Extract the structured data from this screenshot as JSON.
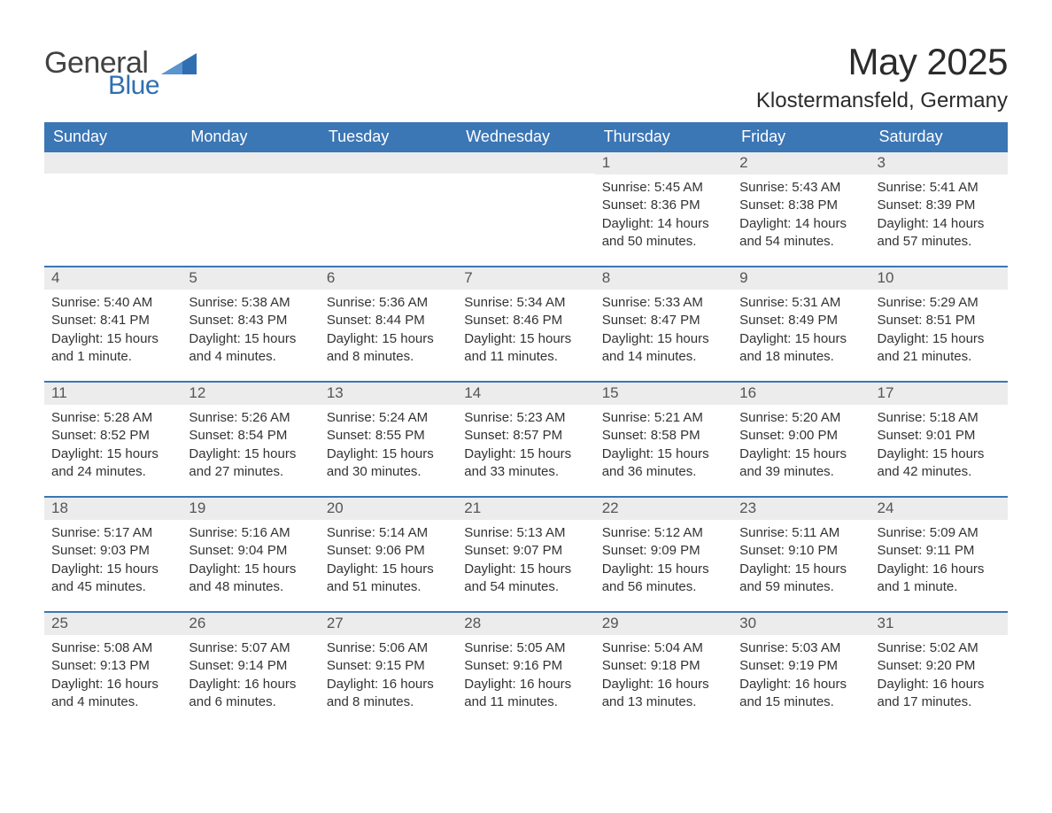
{
  "logo": {
    "general": "General",
    "blue": "Blue",
    "icon_color": "#2f6fb1"
  },
  "title": "May 2025",
  "location": "Klostermansfeld, Germany",
  "colors": {
    "header_bg": "#3b76b5",
    "header_text": "#ffffff",
    "daynum_bg": "#ececec",
    "daynum_text": "#555555",
    "body_text": "#333333",
    "rule": "#3b76b5",
    "page_bg": "#ffffff"
  },
  "typography": {
    "title_fontsize": 42,
    "location_fontsize": 24,
    "header_fontsize": 18,
    "daynum_fontsize": 17,
    "body_fontsize": 15
  },
  "day_headers": [
    "Sunday",
    "Monday",
    "Tuesday",
    "Wednesday",
    "Thursday",
    "Friday",
    "Saturday"
  ],
  "weeks": [
    [
      {
        "empty": true
      },
      {
        "empty": true
      },
      {
        "empty": true
      },
      {
        "empty": true
      },
      {
        "n": "1",
        "sunrise": "Sunrise: 5:45 AM",
        "sunset": "Sunset: 8:36 PM",
        "daylight": "Daylight: 14 hours and 50 minutes."
      },
      {
        "n": "2",
        "sunrise": "Sunrise: 5:43 AM",
        "sunset": "Sunset: 8:38 PM",
        "daylight": "Daylight: 14 hours and 54 minutes."
      },
      {
        "n": "3",
        "sunrise": "Sunrise: 5:41 AM",
        "sunset": "Sunset: 8:39 PM",
        "daylight": "Daylight: 14 hours and 57 minutes."
      }
    ],
    [
      {
        "n": "4",
        "sunrise": "Sunrise: 5:40 AM",
        "sunset": "Sunset: 8:41 PM",
        "daylight": "Daylight: 15 hours and 1 minute."
      },
      {
        "n": "5",
        "sunrise": "Sunrise: 5:38 AM",
        "sunset": "Sunset: 8:43 PM",
        "daylight": "Daylight: 15 hours and 4 minutes."
      },
      {
        "n": "6",
        "sunrise": "Sunrise: 5:36 AM",
        "sunset": "Sunset: 8:44 PM",
        "daylight": "Daylight: 15 hours and 8 minutes."
      },
      {
        "n": "7",
        "sunrise": "Sunrise: 5:34 AM",
        "sunset": "Sunset: 8:46 PM",
        "daylight": "Daylight: 15 hours and 11 minutes."
      },
      {
        "n": "8",
        "sunrise": "Sunrise: 5:33 AM",
        "sunset": "Sunset: 8:47 PM",
        "daylight": "Daylight: 15 hours and 14 minutes."
      },
      {
        "n": "9",
        "sunrise": "Sunrise: 5:31 AM",
        "sunset": "Sunset: 8:49 PM",
        "daylight": "Daylight: 15 hours and 18 minutes."
      },
      {
        "n": "10",
        "sunrise": "Sunrise: 5:29 AM",
        "sunset": "Sunset: 8:51 PM",
        "daylight": "Daylight: 15 hours and 21 minutes."
      }
    ],
    [
      {
        "n": "11",
        "sunrise": "Sunrise: 5:28 AM",
        "sunset": "Sunset: 8:52 PM",
        "daylight": "Daylight: 15 hours and 24 minutes."
      },
      {
        "n": "12",
        "sunrise": "Sunrise: 5:26 AM",
        "sunset": "Sunset: 8:54 PM",
        "daylight": "Daylight: 15 hours and 27 minutes."
      },
      {
        "n": "13",
        "sunrise": "Sunrise: 5:24 AM",
        "sunset": "Sunset: 8:55 PM",
        "daylight": "Daylight: 15 hours and 30 minutes."
      },
      {
        "n": "14",
        "sunrise": "Sunrise: 5:23 AM",
        "sunset": "Sunset: 8:57 PM",
        "daylight": "Daylight: 15 hours and 33 minutes."
      },
      {
        "n": "15",
        "sunrise": "Sunrise: 5:21 AM",
        "sunset": "Sunset: 8:58 PM",
        "daylight": "Daylight: 15 hours and 36 minutes."
      },
      {
        "n": "16",
        "sunrise": "Sunrise: 5:20 AM",
        "sunset": "Sunset: 9:00 PM",
        "daylight": "Daylight: 15 hours and 39 minutes."
      },
      {
        "n": "17",
        "sunrise": "Sunrise: 5:18 AM",
        "sunset": "Sunset: 9:01 PM",
        "daylight": "Daylight: 15 hours and 42 minutes."
      }
    ],
    [
      {
        "n": "18",
        "sunrise": "Sunrise: 5:17 AM",
        "sunset": "Sunset: 9:03 PM",
        "daylight": "Daylight: 15 hours and 45 minutes."
      },
      {
        "n": "19",
        "sunrise": "Sunrise: 5:16 AM",
        "sunset": "Sunset: 9:04 PM",
        "daylight": "Daylight: 15 hours and 48 minutes."
      },
      {
        "n": "20",
        "sunrise": "Sunrise: 5:14 AM",
        "sunset": "Sunset: 9:06 PM",
        "daylight": "Daylight: 15 hours and 51 minutes."
      },
      {
        "n": "21",
        "sunrise": "Sunrise: 5:13 AM",
        "sunset": "Sunset: 9:07 PM",
        "daylight": "Daylight: 15 hours and 54 minutes."
      },
      {
        "n": "22",
        "sunrise": "Sunrise: 5:12 AM",
        "sunset": "Sunset: 9:09 PM",
        "daylight": "Daylight: 15 hours and 56 minutes."
      },
      {
        "n": "23",
        "sunrise": "Sunrise: 5:11 AM",
        "sunset": "Sunset: 9:10 PM",
        "daylight": "Daylight: 15 hours and 59 minutes."
      },
      {
        "n": "24",
        "sunrise": "Sunrise: 5:09 AM",
        "sunset": "Sunset: 9:11 PM",
        "daylight": "Daylight: 16 hours and 1 minute."
      }
    ],
    [
      {
        "n": "25",
        "sunrise": "Sunrise: 5:08 AM",
        "sunset": "Sunset: 9:13 PM",
        "daylight": "Daylight: 16 hours and 4 minutes."
      },
      {
        "n": "26",
        "sunrise": "Sunrise: 5:07 AM",
        "sunset": "Sunset: 9:14 PM",
        "daylight": "Daylight: 16 hours and 6 minutes."
      },
      {
        "n": "27",
        "sunrise": "Sunrise: 5:06 AM",
        "sunset": "Sunset: 9:15 PM",
        "daylight": "Daylight: 16 hours and 8 minutes."
      },
      {
        "n": "28",
        "sunrise": "Sunrise: 5:05 AM",
        "sunset": "Sunset: 9:16 PM",
        "daylight": "Daylight: 16 hours and 11 minutes."
      },
      {
        "n": "29",
        "sunrise": "Sunrise: 5:04 AM",
        "sunset": "Sunset: 9:18 PM",
        "daylight": "Daylight: 16 hours and 13 minutes."
      },
      {
        "n": "30",
        "sunrise": "Sunrise: 5:03 AM",
        "sunset": "Sunset: 9:19 PM",
        "daylight": "Daylight: 16 hours and 15 minutes."
      },
      {
        "n": "31",
        "sunrise": "Sunrise: 5:02 AM",
        "sunset": "Sunset: 9:20 PM",
        "daylight": "Daylight: 16 hours and 17 minutes."
      }
    ]
  ]
}
